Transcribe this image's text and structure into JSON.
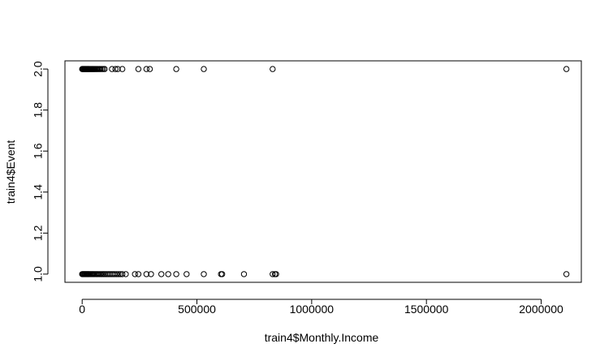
{
  "chart_data": {
    "type": "scatter",
    "title": "",
    "xlabel": "train4$Monthly.Income",
    "ylabel": "train4$Event",
    "xlim": [
      -75000,
      2175000
    ],
    "ylim": [
      0.96,
      2.04
    ],
    "x_ticks": [
      0,
      500000,
      1000000,
      1500000,
      2000000
    ],
    "x_tick_labels": [
      "0",
      "500000",
      "1000000",
      "1500000",
      "2000000"
    ],
    "y_ticks": [
      1.0,
      1.2,
      1.4,
      1.6,
      1.8,
      2.0
    ],
    "y_tick_labels": [
      "1.0",
      "1.2",
      "1.4",
      "1.6",
      "1.8",
      "2.0"
    ],
    "grid": false,
    "legend": "none",
    "point_style": "open-circle",
    "colors": {
      "points": "#000000",
      "axes": "#000000",
      "background": "#ffffff"
    },
    "series": [
      {
        "values": [
          {
            "x": 0,
            "y": 2
          },
          {
            "x": 2000,
            "y": 2
          },
          {
            "x": 4000,
            "y": 2
          },
          {
            "x": 6000,
            "y": 2
          },
          {
            "x": 8000,
            "y": 2
          },
          {
            "x": 10000,
            "y": 2
          },
          {
            "x": 12000,
            "y": 2
          },
          {
            "x": 14000,
            "y": 2
          },
          {
            "x": 16000,
            "y": 2
          },
          {
            "x": 18000,
            "y": 2
          },
          {
            "x": 20000,
            "y": 2
          },
          {
            "x": 22000,
            "y": 2
          },
          {
            "x": 24000,
            "y": 2
          },
          {
            "x": 26000,
            "y": 2
          },
          {
            "x": 28000,
            "y": 2
          },
          {
            "x": 30000,
            "y": 2
          },
          {
            "x": 33000,
            "y": 2
          },
          {
            "x": 36000,
            "y": 2
          },
          {
            "x": 39000,
            "y": 2
          },
          {
            "x": 42000,
            "y": 2
          },
          {
            "x": 45000,
            "y": 2
          },
          {
            "x": 48000,
            "y": 2
          },
          {
            "x": 51000,
            "y": 2
          },
          {
            "x": 54000,
            "y": 2
          },
          {
            "x": 58000,
            "y": 2
          },
          {
            "x": 62000,
            "y": 2
          },
          {
            "x": 66000,
            "y": 2
          },
          {
            "x": 70000,
            "y": 2
          },
          {
            "x": 75000,
            "y": 2
          },
          {
            "x": 80000,
            "y": 2
          },
          {
            "x": 86000,
            "y": 2
          },
          {
            "x": 92000,
            "y": 2
          },
          {
            "x": 98000,
            "y": 2
          },
          {
            "x": 130000,
            "y": 2
          },
          {
            "x": 145000,
            "y": 2
          },
          {
            "x": 155000,
            "y": 2
          },
          {
            "x": 175000,
            "y": 2
          },
          {
            "x": 245000,
            "y": 2
          },
          {
            "x": 280000,
            "y": 2
          },
          {
            "x": 295000,
            "y": 2
          },
          {
            "x": 410000,
            "y": 2
          },
          {
            "x": 530000,
            "y": 2
          },
          {
            "x": 830000,
            "y": 2
          },
          {
            "x": 2110000,
            "y": 2
          },
          {
            "x": 0,
            "y": 1
          },
          {
            "x": 3000,
            "y": 1
          },
          {
            "x": 6000,
            "y": 1
          },
          {
            "x": 9000,
            "y": 1
          },
          {
            "x": 12000,
            "y": 1
          },
          {
            "x": 15000,
            "y": 1
          },
          {
            "x": 18000,
            "y": 1
          },
          {
            "x": 21000,
            "y": 1
          },
          {
            "x": 24000,
            "y": 1
          },
          {
            "x": 27000,
            "y": 1
          },
          {
            "x": 30000,
            "y": 1
          },
          {
            "x": 34000,
            "y": 1
          },
          {
            "x": 38000,
            "y": 1
          },
          {
            "x": 42000,
            "y": 1
          },
          {
            "x": 46000,
            "y": 1
          },
          {
            "x": 50000,
            "y": 1
          },
          {
            "x": 55000,
            "y": 1
          },
          {
            "x": 60000,
            "y": 1
          },
          {
            "x": 65000,
            "y": 1
          },
          {
            "x": 70000,
            "y": 1
          },
          {
            "x": 76000,
            "y": 1
          },
          {
            "x": 82000,
            "y": 1
          },
          {
            "x": 88000,
            "y": 1
          },
          {
            "x": 94000,
            "y": 1
          },
          {
            "x": 100000,
            "y": 1
          },
          {
            "x": 107000,
            "y": 1
          },
          {
            "x": 114000,
            "y": 1
          },
          {
            "x": 121000,
            "y": 1
          },
          {
            "x": 128000,
            "y": 1
          },
          {
            "x": 135000,
            "y": 1
          },
          {
            "x": 142000,
            "y": 1
          },
          {
            "x": 150000,
            "y": 1
          },
          {
            "x": 158000,
            "y": 1
          },
          {
            "x": 166000,
            "y": 1
          },
          {
            "x": 175000,
            "y": 1
          },
          {
            "x": 190000,
            "y": 1
          },
          {
            "x": 230000,
            "y": 1
          },
          {
            "x": 245000,
            "y": 1
          },
          {
            "x": 280000,
            "y": 1
          },
          {
            "x": 300000,
            "y": 1
          },
          {
            "x": 345000,
            "y": 1
          },
          {
            "x": 375000,
            "y": 1
          },
          {
            "x": 410000,
            "y": 1
          },
          {
            "x": 455000,
            "y": 1
          },
          {
            "x": 530000,
            "y": 1
          },
          {
            "x": 605000,
            "y": 1
          },
          {
            "x": 610000,
            "y": 1
          },
          {
            "x": 705000,
            "y": 1
          },
          {
            "x": 830000,
            "y": 1
          },
          {
            "x": 840000,
            "y": 1
          },
          {
            "x": 845000,
            "y": 1
          },
          {
            "x": 2110000,
            "y": 1
          }
        ]
      }
    ]
  }
}
